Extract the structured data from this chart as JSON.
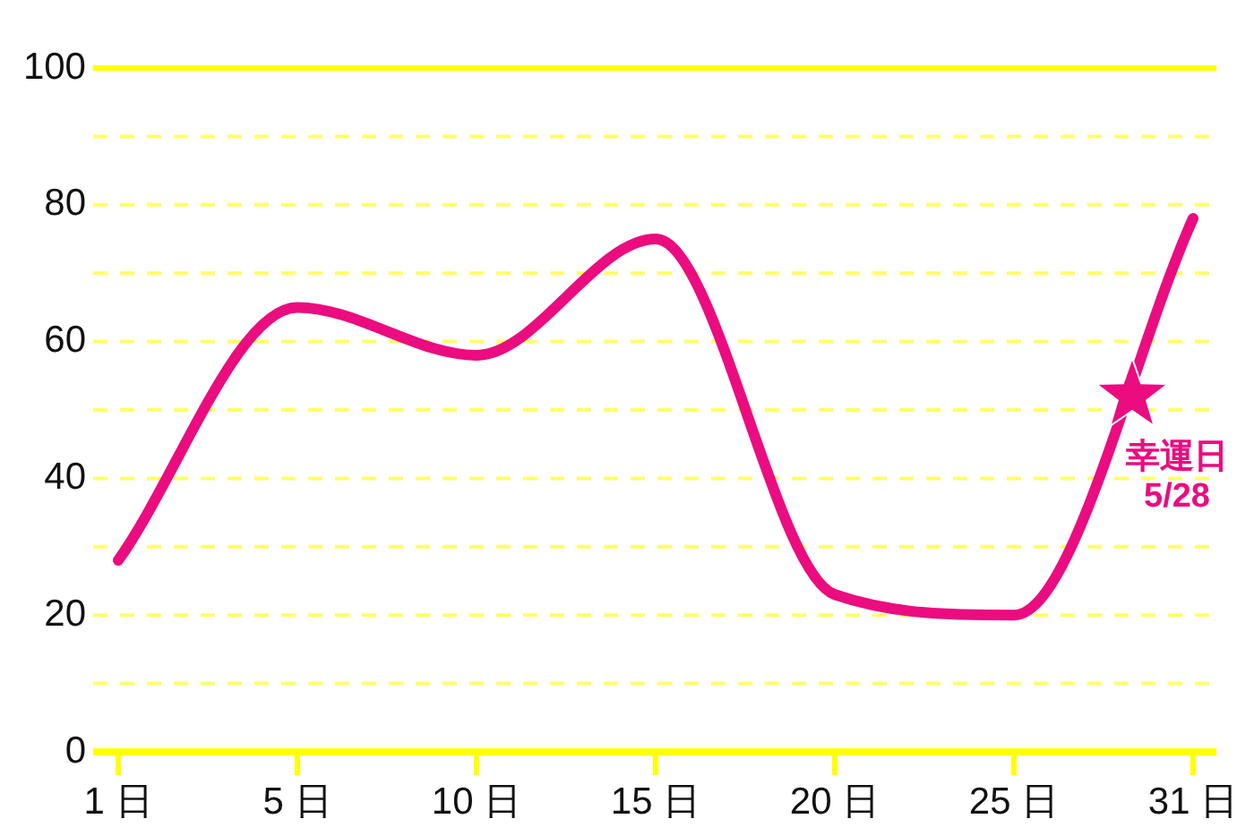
{
  "chart_data": {
    "type": "line",
    "categories": [
      "1 日",
      "5 日",
      "10 日",
      "15 日",
      "20 日",
      "25 日",
      "31 日"
    ],
    "values": [
      28,
      65,
      58,
      75,
      23,
      20,
      78
    ],
    "color": "#eb0c7f",
    "ylim": [
      0,
      100
    ],
    "yticks": [
      0,
      {
        "value": 10,
        "label": null
      },
      20,
      {
        "value": 30,
        "label": null
      },
      40,
      {
        "value": 50,
        "label": null
      },
      60,
      {
        "value": 70,
        "label": null
      },
      80,
      {
        "value": 90,
        "label": null
      },
      100
    ],
    "grid": "y",
    "marker": "none",
    "line_style": "solid",
    "annotations": [
      "幸運日 5/28"
    ]
  }
}
